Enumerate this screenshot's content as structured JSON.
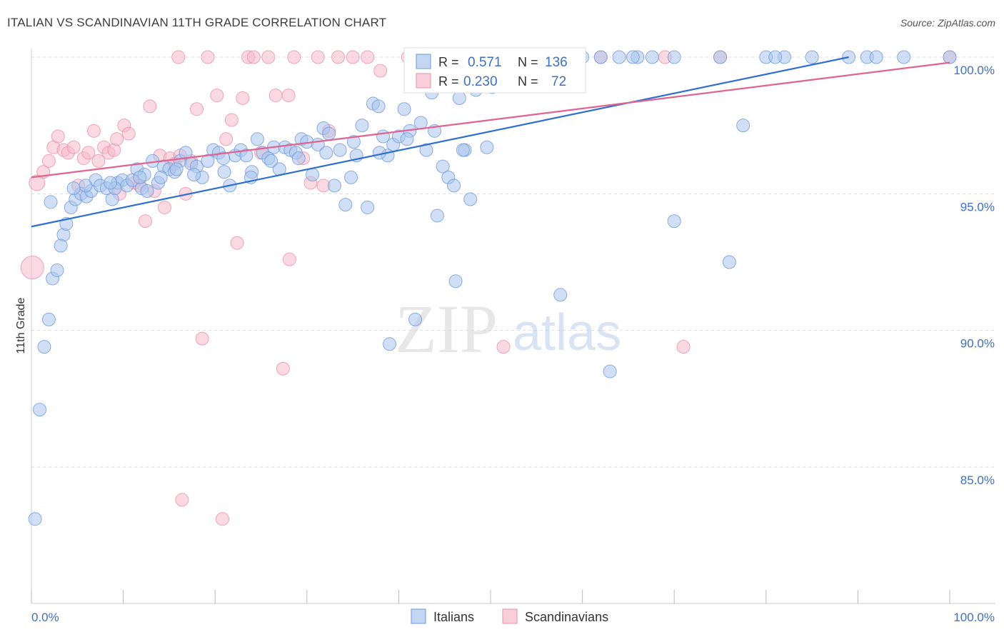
{
  "title": "ITALIAN VS SCANDINAVIAN 11TH GRADE CORRELATION CHART",
  "source": "Source: ZipAtlas.com",
  "watermark": {
    "zip": "ZIP",
    "atlas": "atlas"
  },
  "colors": {
    "italians_fill": "#a9c4ec",
    "italians_stroke": "#6f9ad8",
    "italians_line": "#2f6fd0",
    "scandinavians_fill": "#f6b9cc",
    "scandinavians_stroke": "#e891ad",
    "scandinavians_line": "#e0648f",
    "axis_label": "#3f6fc4",
    "grid": "#dddddd"
  },
  "legend_box": {
    "rows": [
      {
        "r_label": "R =",
        "r_value": "0.571",
        "n_label": "N =",
        "n_value": "136"
      },
      {
        "r_label": "R =",
        "r_value": "0.230",
        "n_label": "N =",
        "n_value": "72"
      }
    ]
  },
  "bottom_legend": [
    "Italians",
    "Scandinavians"
  ],
  "chart_data": {
    "type": "scatter",
    "title": "ITALIAN VS SCANDINAVIAN 11TH GRADE CORRELATION CHART",
    "xlabel": "",
    "ylabel": "11th Grade",
    "xlim": [
      0,
      100
    ],
    "ylim": [
      80.4,
      100.6
    ],
    "x_tick_labels": [
      "0.0%",
      "100.0%"
    ],
    "y_ticks": [
      85,
      90,
      95,
      100
    ],
    "y_tick_labels": [
      "85.0%",
      "90.0%",
      "95.0%",
      "100.0%"
    ],
    "grid": true,
    "series": [
      {
        "name": "Italians",
        "R": 0.571,
        "N": 136,
        "trend": {
          "x": [
            0,
            89
          ],
          "y": [
            93.8,
            100.0
          ]
        },
        "points": [
          [
            0.4,
            83.1
          ],
          [
            0.9,
            87.1
          ],
          [
            1.4,
            89.4
          ],
          [
            1.9,
            90.4
          ],
          [
            2.3,
            91.9
          ],
          [
            2.8,
            92.2
          ],
          [
            3.5,
            93.5
          ],
          [
            3.8,
            93.9
          ],
          [
            4.3,
            94.5
          ],
          [
            4.8,
            94.8
          ],
          [
            5.4,
            95.0
          ],
          [
            6.0,
            94.9
          ],
          [
            6.5,
            95.1
          ],
          [
            7.0,
            95.5
          ],
          [
            7.5,
            95.3
          ],
          [
            8.2,
            95.2
          ],
          [
            8.8,
            94.8
          ],
          [
            9.4,
            95.4
          ],
          [
            9.9,
            95.5
          ],
          [
            10.4,
            95.3
          ],
          [
            11.0,
            95.5
          ],
          [
            11.5,
            95.9
          ],
          [
            12.0,
            95.2
          ],
          [
            12.6,
            95.1
          ],
          [
            13.2,
            96.2
          ],
          [
            13.8,
            95.4
          ],
          [
            14.4,
            96.0
          ],
          [
            15.0,
            95.9
          ],
          [
            15.6,
            95.8
          ],
          [
            16.2,
            96.2
          ],
          [
            16.8,
            96.5
          ],
          [
            17.4,
            96.1
          ],
          [
            18.0,
            96.0
          ],
          [
            18.6,
            95.6
          ],
          [
            19.2,
            96.2
          ],
          [
            19.8,
            96.6
          ],
          [
            20.4,
            96.5
          ],
          [
            21.0,
            95.8
          ],
          [
            21.6,
            95.3
          ],
          [
            22.2,
            96.4
          ],
          [
            22.8,
            96.6
          ],
          [
            23.4,
            96.4
          ],
          [
            24.0,
            95.8
          ],
          [
            24.6,
            97.0
          ],
          [
            25.2,
            96.5
          ],
          [
            25.8,
            96.3
          ],
          [
            26.4,
            96.7
          ],
          [
            27.0,
            95.9
          ],
          [
            27.6,
            96.7
          ],
          [
            28.2,
            96.6
          ],
          [
            28.8,
            96.5
          ],
          [
            29.4,
            97.0
          ],
          [
            30.0,
            96.9
          ],
          [
            30.6,
            95.7
          ],
          [
            31.2,
            96.8
          ],
          [
            31.8,
            97.4
          ],
          [
            32.4,
            97.2
          ],
          [
            33.0,
            95.3
          ],
          [
            33.6,
            96.6
          ],
          [
            34.2,
            94.6
          ],
          [
            34.8,
            95.6
          ],
          [
            35.4,
            96.4
          ],
          [
            36.0,
            97.5
          ],
          [
            36.6,
            94.5
          ],
          [
            37.2,
            98.3
          ],
          [
            37.8,
            98.2
          ],
          [
            38.3,
            97.1
          ],
          [
            38.8,
            96.4
          ],
          [
            39.4,
            96.8
          ],
          [
            40.0,
            97.1
          ],
          [
            40.6,
            98.1
          ],
          [
            41.2,
            97.3
          ],
          [
            41.8,
            90.4
          ],
          [
            42.4,
            97.6
          ],
          [
            43.0,
            96.6
          ],
          [
            43.6,
            98.7
          ],
          [
            44.2,
            94.2
          ],
          [
            44.8,
            96.0
          ],
          [
            45.4,
            95.6
          ],
          [
            46.0,
            95.3
          ],
          [
            46.6,
            98.5
          ],
          [
            47.2,
            96.6
          ],
          [
            47.8,
            94.8
          ],
          [
            48.4,
            98.8
          ],
          [
            49.0,
            100.0
          ],
          [
            49.6,
            96.7
          ],
          [
            50.2,
            98.9
          ],
          [
            51.0,
            100.0
          ],
          [
            52.0,
            100.0
          ],
          [
            53.0,
            100.0
          ],
          [
            54.0,
            100.0
          ],
          [
            55.0,
            100.0
          ],
          [
            56.0,
            100.0
          ],
          [
            58.0,
            100.0
          ],
          [
            60.0,
            100.0
          ],
          [
            62.0,
            100.0
          ],
          [
            64.0,
            100.0
          ],
          [
            66.0,
            100.0
          ],
          [
            70.0,
            100.0
          ],
          [
            75.0,
            100.0
          ],
          [
            80.0,
            100.0
          ],
          [
            82.0,
            100.0
          ],
          [
            85.0,
            100.0
          ],
          [
            89.0,
            100.0
          ],
          [
            91.0,
            100.0
          ],
          [
            95.0,
            100.0
          ],
          [
            100.0,
            100.0
          ],
          [
            47.0,
            96.6
          ],
          [
            46.2,
            91.8
          ],
          [
            57.6,
            91.3
          ],
          [
            45.4,
            100.0
          ],
          [
            67.6,
            100.0
          ],
          [
            63.0,
            88.5
          ],
          [
            70.0,
            94.0
          ],
          [
            76.0,
            92.5
          ],
          [
            77.5,
            97.5
          ],
          [
            65.5,
            100.0
          ],
          [
            81.0,
            100.0
          ],
          [
            92.0,
            100.0
          ],
          [
            39.0,
            89.5
          ],
          [
            2.1,
            94.7
          ],
          [
            3.2,
            93.1
          ],
          [
            5.9,
            95.3
          ],
          [
            9.1,
            95.2
          ],
          [
            12.3,
            95.7
          ],
          [
            14.1,
            95.6
          ],
          [
            17.7,
            95.7
          ],
          [
            20.9,
            96.3
          ],
          [
            23.9,
            95.6
          ],
          [
            26.1,
            96.2
          ],
          [
            29.1,
            96.3
          ],
          [
            32.1,
            96.5
          ],
          [
            35.1,
            96.9
          ],
          [
            37.9,
            96.5
          ],
          [
            40.9,
            97.0
          ],
          [
            43.9,
            97.3
          ],
          [
            4.6,
            95.2
          ],
          [
            8.6,
            95.4
          ],
          [
            11.8,
            95.6
          ],
          [
            15.8,
            95.9
          ]
        ]
      },
      {
        "name": "Scandinavians",
        "R": 0.23,
        "N": 72,
        "trend": {
          "x": [
            0,
            100
          ],
          "y": [
            95.6,
            99.8
          ]
        },
        "points": [
          [
            0.1,
            92.3
          ],
          [
            0.6,
            95.4
          ],
          [
            1.3,
            95.8
          ],
          [
            1.9,
            96.2
          ],
          [
            2.4,
            96.7
          ],
          [
            2.9,
            97.1
          ],
          [
            3.5,
            96.6
          ],
          [
            4.0,
            96.5
          ],
          [
            4.6,
            96.7
          ],
          [
            5.1,
            95.3
          ],
          [
            5.7,
            96.3
          ],
          [
            6.2,
            96.5
          ],
          [
            6.8,
            97.3
          ],
          [
            7.3,
            96.2
          ],
          [
            7.9,
            96.7
          ],
          [
            8.4,
            96.5
          ],
          [
            9.0,
            96.6
          ],
          [
            9.6,
            95.0
          ],
          [
            10.1,
            97.5
          ],
          [
            10.6,
            97.2
          ],
          [
            11.2,
            95.4
          ],
          [
            11.8,
            95.3
          ],
          [
            12.4,
            94.0
          ],
          [
            12.9,
            98.2
          ],
          [
            13.4,
            95.1
          ],
          [
            14.0,
            96.4
          ],
          [
            14.5,
            94.5
          ],
          [
            15.1,
            96.3
          ],
          [
            15.6,
            96.1
          ],
          [
            16.2,
            96.4
          ],
          [
            16.8,
            95.0
          ],
          [
            17.4,
            96.2
          ],
          [
            18.0,
            98.1
          ],
          [
            18.6,
            89.7
          ],
          [
            19.2,
            100.0
          ],
          [
            20.2,
            98.6
          ],
          [
            21.2,
            97.0
          ],
          [
            21.8,
            97.7
          ],
          [
            22.4,
            93.2
          ],
          [
            23.0,
            98.5
          ],
          [
            23.6,
            100.0
          ],
          [
            24.2,
            100.0
          ],
          [
            25.0,
            96.5
          ],
          [
            25.8,
            100.0
          ],
          [
            26.6,
            98.6
          ],
          [
            27.4,
            88.6
          ],
          [
            28.0,
            98.6
          ],
          [
            28.6,
            100.0
          ],
          [
            29.6,
            96.3
          ],
          [
            30.4,
            95.4
          ],
          [
            31.2,
            100.0
          ],
          [
            31.8,
            95.3
          ],
          [
            32.4,
            97.3
          ],
          [
            33.4,
            100.0
          ],
          [
            35.0,
            100.0
          ],
          [
            36.6,
            100.0
          ],
          [
            38.0,
            99.5
          ],
          [
            41.0,
            100.0
          ],
          [
            45.0,
            100.0
          ],
          [
            52.0,
            100.0
          ],
          [
            56.0,
            100.0
          ],
          [
            62.0,
            100.0
          ],
          [
            69.0,
            100.0
          ],
          [
            75.0,
            100.0
          ],
          [
            100.0,
            100.0
          ],
          [
            51.4,
            89.4
          ],
          [
            71.0,
            89.4
          ],
          [
            16.0,
            100.0
          ],
          [
            28.1,
            92.6
          ],
          [
            20.8,
            83.1
          ],
          [
            16.4,
            83.8
          ],
          [
            9.3,
            97.0
          ]
        ]
      }
    ]
  }
}
